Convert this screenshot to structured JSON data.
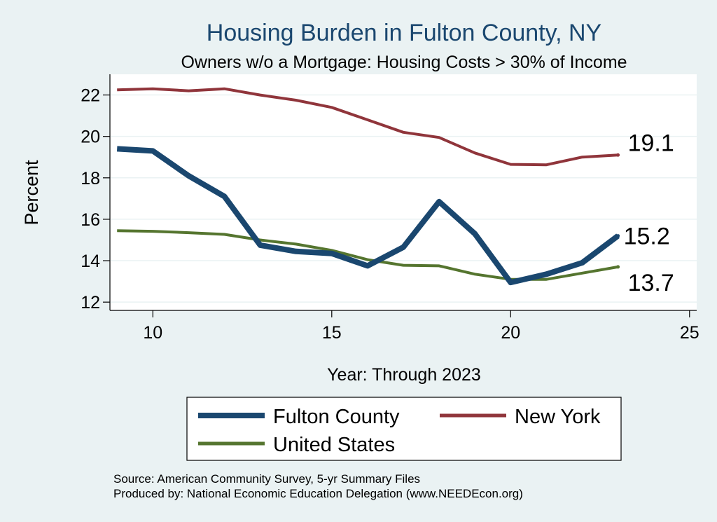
{
  "chart_data": {
    "type": "line",
    "title": "Housing Burden in Fulton County, NY",
    "subtitle": "Owners w/o a Mortgage: Housing Costs > 30% of Income",
    "xlabel": "Year: Through 2023",
    "ylabel": "Percent",
    "xlim": [
      8.8,
      25.2
    ],
    "ylim": [
      11.6,
      23.0
    ],
    "xticks": [
      10,
      15,
      20,
      25
    ],
    "yticks": [
      12,
      14,
      16,
      18,
      20,
      22
    ],
    "x": [
      9,
      10,
      11,
      12,
      13,
      14,
      15,
      16,
      17,
      18,
      19,
      20,
      21,
      22,
      23
    ],
    "series": [
      {
        "name": "Fulton County",
        "color": "#1a476f",
        "values": [
          19.4,
          19.3,
          18.1,
          17.1,
          14.75,
          14.45,
          14.35,
          13.75,
          14.65,
          16.85,
          15.3,
          12.95,
          13.35,
          13.9,
          15.2
        ],
        "end_label": "15.2"
      },
      {
        "name": "New York",
        "color": "#90353b",
        "values": [
          22.25,
          22.3,
          22.2,
          22.3,
          22.0,
          21.75,
          21.4,
          20.8,
          20.2,
          19.95,
          19.2,
          18.65,
          18.63,
          19.0,
          19.1
        ],
        "end_label": "19.1"
      },
      {
        "name": "United States",
        "color": "#55752f",
        "values": [
          15.45,
          15.42,
          15.35,
          15.27,
          15.0,
          14.8,
          14.5,
          14.05,
          13.78,
          13.75,
          13.35,
          13.1,
          13.1,
          13.4,
          13.7
        ],
        "end_label": "13.7"
      }
    ],
    "legend": {
      "placement": "bottom",
      "entries": [
        "Fulton County",
        "New York",
        "United States"
      ]
    }
  },
  "footnotes": {
    "source": "Source: American Community Survey, 5-yr Summary Files",
    "produced": "Produced by: National Economic Education Delegation (www.NEEDEcon.org)"
  }
}
